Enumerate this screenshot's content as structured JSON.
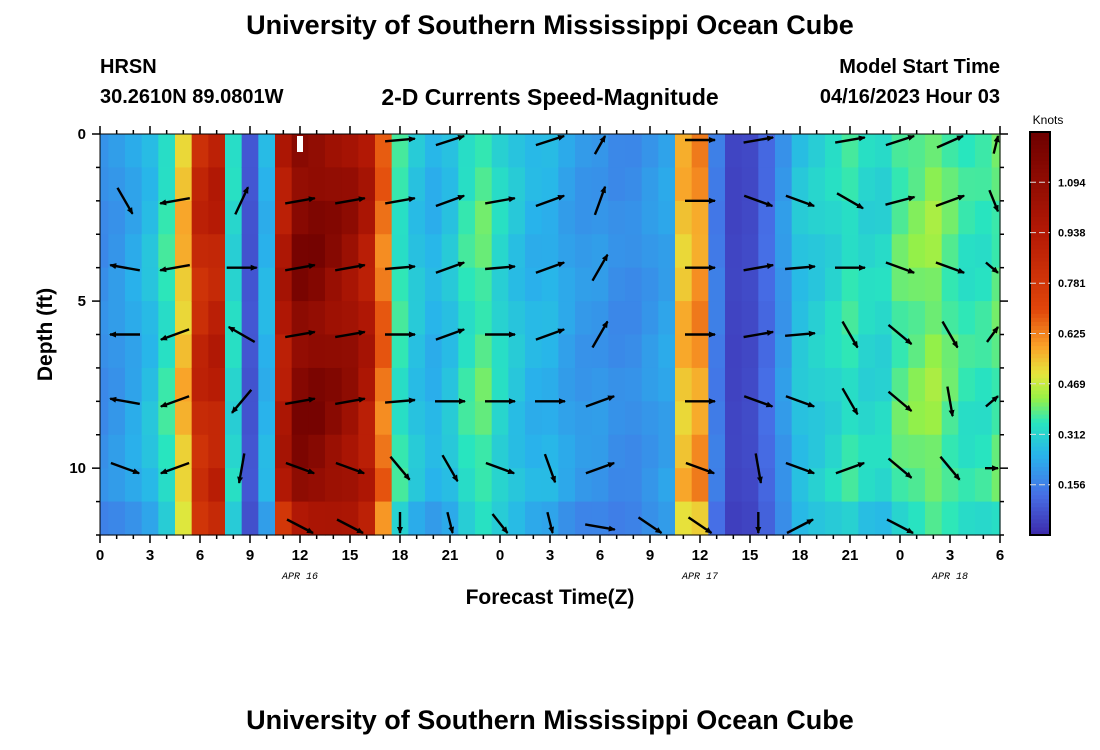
{
  "title": "University of Southern Mississippi Ocean Cube",
  "footer_title": "University of Southern Mississippi Ocean Cube",
  "station": {
    "name": "HRSN",
    "coords": "30.2610N  89.0801W"
  },
  "model_start": {
    "label": "Model Start Time",
    "value": "04/16/2023 Hour 03"
  },
  "chart_data": {
    "type": "heatmap",
    "title": "2-D Currents Speed-Magnitude",
    "xlabel": "Forecast Time(Z)",
    "ylabel": "Depth (ft)",
    "x_range_hours": [
      0,
      54
    ],
    "y_range_ft": [
      0,
      12
    ],
    "x_ticks": [
      {
        "h": 0,
        "label": "0"
      },
      {
        "h": 3,
        "label": "3"
      },
      {
        "h": 6,
        "label": "6"
      },
      {
        "h": 9,
        "label": "9"
      },
      {
        "h": 12,
        "label": "12"
      },
      {
        "h": 15,
        "label": "15"
      },
      {
        "h": 18,
        "label": "18"
      },
      {
        "h": 21,
        "label": "21"
      },
      {
        "h": 24,
        "label": "0"
      },
      {
        "h": 27,
        "label": "3"
      },
      {
        "h": 30,
        "label": "6"
      },
      {
        "h": 33,
        "label": "9"
      },
      {
        "h": 36,
        "label": "12"
      },
      {
        "h": 39,
        "label": "15"
      },
      {
        "h": 42,
        "label": "18"
      },
      {
        "h": 45,
        "label": "21"
      },
      {
        "h": 48,
        "label": "0"
      },
      {
        "h": 51,
        "label": "3"
      },
      {
        "h": 54,
        "label": "6"
      }
    ],
    "date_labels": [
      {
        "h": 12,
        "label": "APR 16"
      },
      {
        "h": 36,
        "label": "APR 17"
      },
      {
        "h": 51,
        "label": "APR 18"
      }
    ],
    "y_ticks": [
      {
        "d": 0,
        "label": "0"
      },
      {
        "d": 5,
        "label": "5"
      },
      {
        "d": 10,
        "label": "10"
      }
    ],
    "colorbar": {
      "unit": "Knots",
      "min": 0,
      "max": 1.25,
      "ticks": [
        {
          "v": 0.156,
          "label": "0.156"
        },
        {
          "v": 0.312,
          "label": "0.312"
        },
        {
          "v": 0.469,
          "label": "0.469"
        },
        {
          "v": 0.625,
          "label": "0.625"
        },
        {
          "v": 0.781,
          "label": "0.781"
        },
        {
          "v": 0.938,
          "label": "0.938"
        },
        {
          "v": 1.094,
          "label": "1.094"
        }
      ]
    },
    "time_hours": [
      0,
      1,
      2,
      3,
      4,
      5,
      6,
      7,
      8,
      9,
      10,
      11,
      12,
      13,
      14,
      15,
      16,
      17,
      18,
      19,
      20,
      21,
      22,
      23,
      24,
      25,
      26,
      27,
      28,
      29,
      30,
      31,
      32,
      33,
      34,
      35,
      36,
      37,
      38,
      39,
      40,
      41,
      42,
      43,
      44,
      45,
      46,
      47,
      48,
      49,
      50,
      51,
      52,
      53,
      54
    ],
    "speed_by_time_knots": [
      0.18,
      0.2,
      0.23,
      0.27,
      0.35,
      0.55,
      0.85,
      0.9,
      0.32,
      0.08,
      0.25,
      0.95,
      1.15,
      1.15,
      1.1,
      1.05,
      0.95,
      0.65,
      0.35,
      0.28,
      0.25,
      0.28,
      0.35,
      0.38,
      0.32,
      0.28,
      0.25,
      0.25,
      0.22,
      0.2,
      0.2,
      0.18,
      0.18,
      0.2,
      0.22,
      0.55,
      0.6,
      0.15,
      0.05,
      0.06,
      0.12,
      0.2,
      0.28,
      0.3,
      0.32,
      0.35,
      0.32,
      0.32,
      0.38,
      0.4,
      0.42,
      0.38,
      0.35,
      0.35,
      0.38
    ],
    "vector_times_hours": [
      1.5,
      4.5,
      8.5,
      12,
      15,
      18,
      21,
      24,
      27,
      30,
      33,
      36,
      39.5,
      42,
      45,
      48,
      51,
      54
    ],
    "vector_depths_ft": [
      0,
      2,
      4,
      6,
      8,
      10,
      12
    ],
    "vector_direction_deg": [
      [
        null,
        null,
        null,
        null,
        null,
        5,
        20,
        null,
        20,
        70,
        null,
        0,
        10,
        null,
        10,
        20,
        30,
        65
      ],
      [
        300,
        190,
        65,
        10,
        10,
        10,
        20,
        10,
        20,
        70,
        null,
        0,
        -20,
        -20,
        -30,
        15,
        20,
        -45
      ],
      [
        170,
        190,
        0,
        10,
        10,
        5,
        20,
        5,
        20,
        60,
        null,
        0,
        10,
        5,
        0,
        -20,
        -20,
        -20
      ],
      [
        180,
        200,
        150,
        10,
        10,
        0,
        20,
        0,
        20,
        60,
        null,
        0,
        10,
        5,
        300,
        -40,
        -60,
        30
      ],
      [
        170,
        200,
        230,
        10,
        10,
        5,
        0,
        0,
        0,
        20,
        null,
        0,
        -20,
        -20,
        300,
        -40,
        -80,
        20
      ],
      [
        -20,
        200,
        260,
        -20,
        -20,
        -50,
        -60,
        -20,
        -70,
        20,
        null,
        -20,
        -80,
        -20,
        20,
        -40,
        -50,
        0
      ],
      [
        null,
        null,
        null,
        -30,
        -30,
        -90,
        -80,
        -60,
        -80,
        -10,
        -40,
        -40,
        -90,
        30,
        null,
        -30,
        null,
        null
      ]
    ],
    "notes_marker": {
      "h": 12,
      "label": ""
    }
  }
}
